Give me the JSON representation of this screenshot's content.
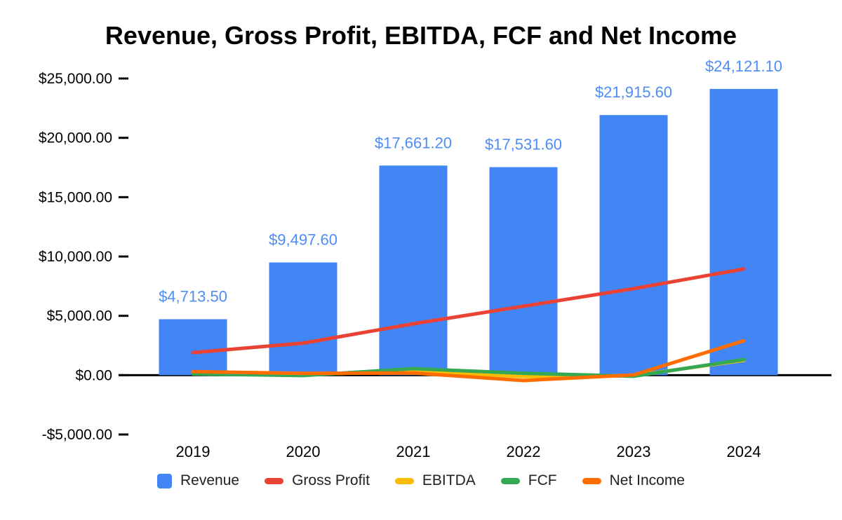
{
  "chart_data": {
    "type": "combo",
    "title": "Revenue, Gross Profit, EBITDA, FCF and Net Income",
    "categories": [
      "2019",
      "2020",
      "2021",
      "2022",
      "2023",
      "2024"
    ],
    "bar_series": {
      "name": "Revenue",
      "color": "#4285F4",
      "data_label_color": "#4e8df5",
      "values": [
        4713.5,
        9497.6,
        17661.2,
        17531.6,
        21915.6,
        24121.1
      ],
      "labels": [
        "$4,713.50",
        "$9,497.60",
        "$17,661.20",
        "$17,531.60",
        "$21,915.60",
        "$24,121.10"
      ]
    },
    "line_series": [
      {
        "name": "Gross Profit",
        "color": "#EA4335",
        "values": [
          1900,
          2700,
          4330,
          5810,
          7290,
          8950
        ]
      },
      {
        "name": "EBITDA",
        "color": "#FBBC04",
        "values": [
          200,
          60,
          320,
          -120,
          -40,
          1250
        ]
      },
      {
        "name": "FCF",
        "color": "#34A853",
        "values": [
          100,
          -30,
          550,
          160,
          -90,
          1320
        ]
      },
      {
        "name": "Net Income",
        "color": "#FF6D01",
        "values": [
          300,
          150,
          180,
          -450,
          20,
          2900
        ]
      }
    ],
    "y_axis": {
      "min": -5000,
      "max": 25000,
      "tick_step": 5000,
      "tick_labels": [
        "-$5,000.00",
        "$0.00",
        "$5,000.00",
        "$10,000.00",
        "$15,000.00",
        "$20,000.00",
        "$25,000.00"
      ],
      "axis_color": "#000000"
    },
    "grid": false,
    "legend_position": "bottom",
    "legend": [
      "Revenue",
      "Gross Profit",
      "EBITDA",
      "FCF",
      "Net Income"
    ]
  }
}
